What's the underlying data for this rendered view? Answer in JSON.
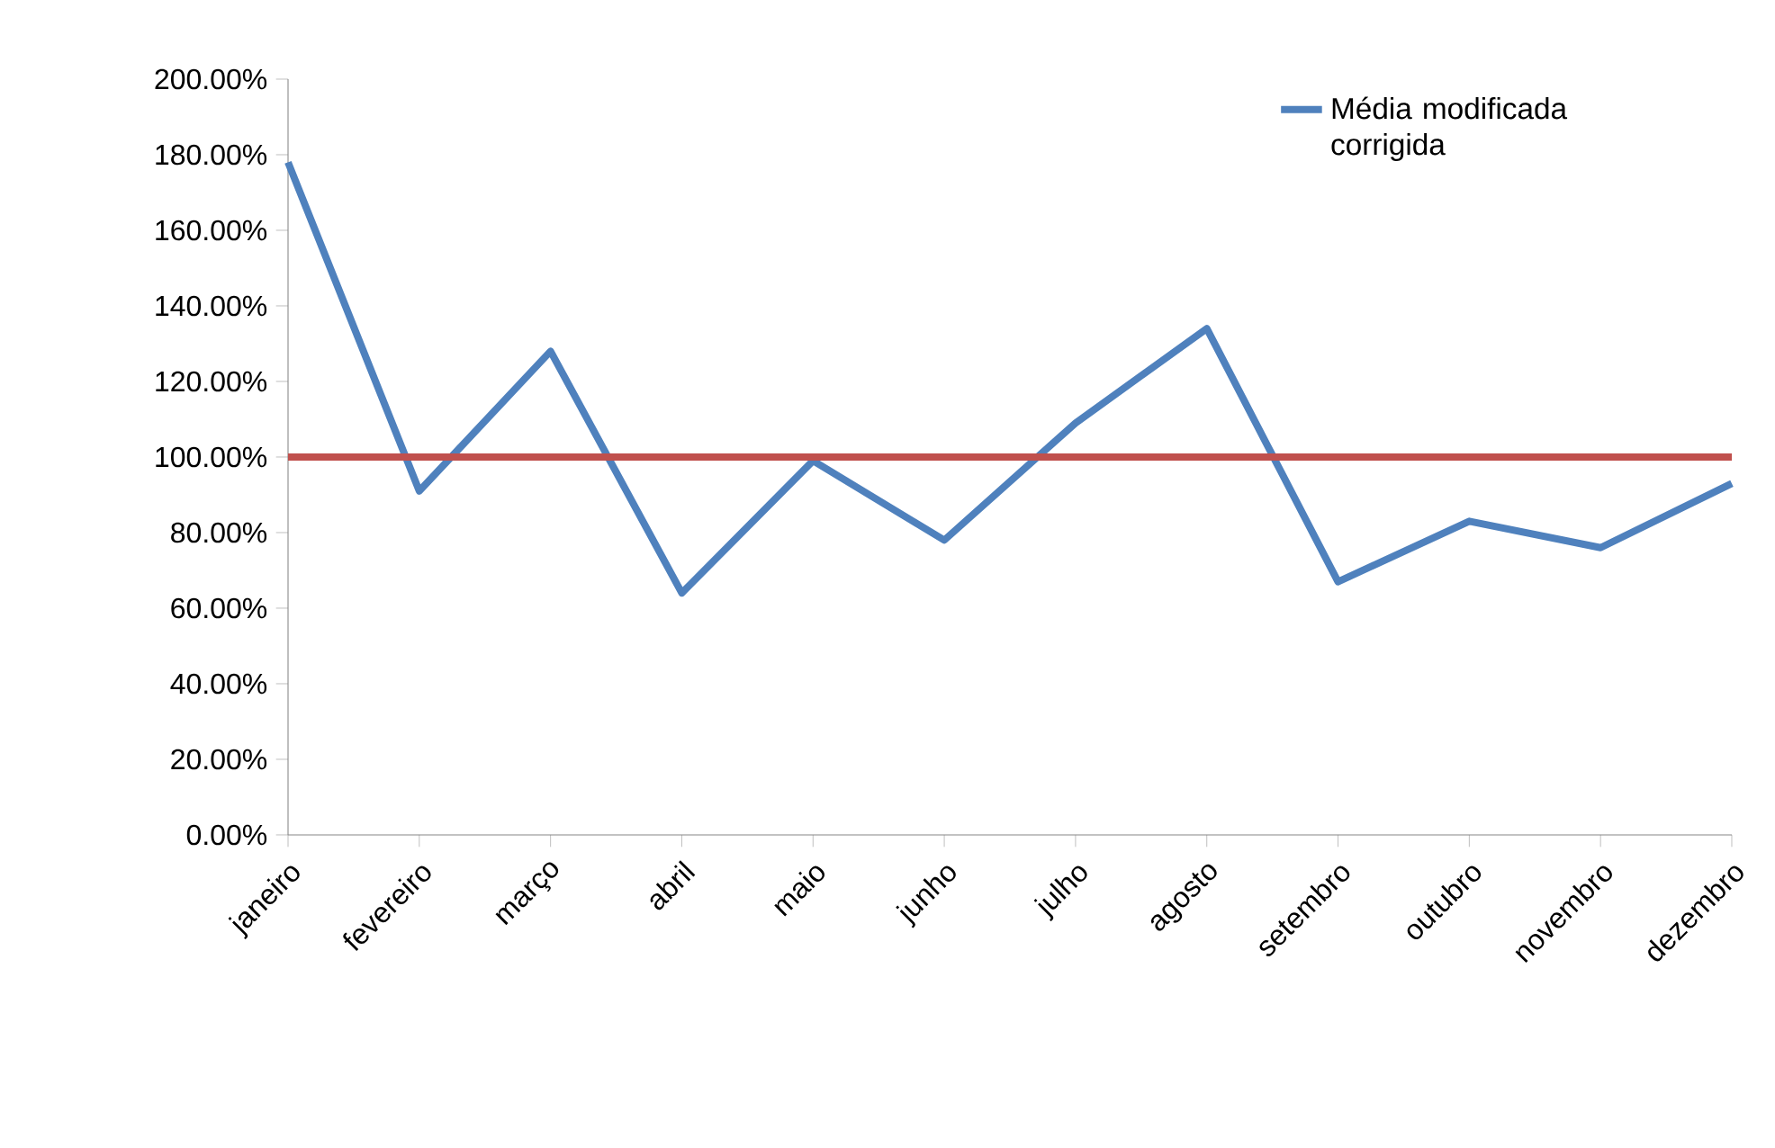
{
  "chart_data": {
    "type": "line",
    "categories": [
      "janeiro",
      "fevereiro",
      "março",
      "abril",
      "maio",
      "junho",
      "julho",
      "agosto",
      "setembro",
      "outubro",
      "novembro",
      "dezembro"
    ],
    "series": [
      {
        "name": "Média modificada corrigida",
        "color": "#4f81bd",
        "values": [
          178,
          91,
          128,
          64,
          99,
          78,
          109,
          134,
          67,
          83,
          76,
          93
        ]
      }
    ],
    "ylim": [
      0,
      200
    ],
    "yticks": [
      {
        "value": 0,
        "label": "0.00%"
      },
      {
        "value": 20,
        "label": "20.00%"
      },
      {
        "value": 40,
        "label": "40.00%"
      },
      {
        "value": 60,
        "label": "60.00%"
      },
      {
        "value": 80,
        "label": "80.00%"
      },
      {
        "value": 100,
        "label": "100.00%"
      },
      {
        "value": 120,
        "label": "120.00%"
      },
      {
        "value": 140,
        "label": "140.00%"
      },
      {
        "value": 160,
        "label": "160.00%"
      },
      {
        "value": 180,
        "label": "180.00%"
      },
      {
        "value": 200,
        "label": "200.00%"
      }
    ],
    "ref_lines": [
      {
        "axis": "y",
        "value": 100,
        "color": "#c0504d"
      }
    ],
    "grid": false,
    "legend": "top right",
    "marker": "none",
    "line_style": "solid"
  }
}
